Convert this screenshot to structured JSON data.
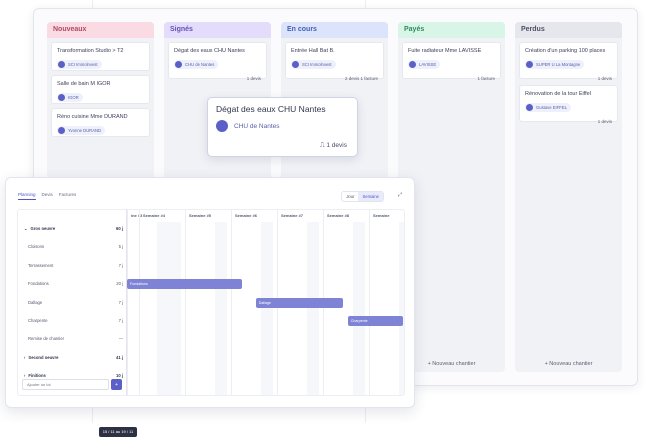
{
  "kanban": {
    "columns": [
      {
        "title": "Nouveaux",
        "color": "#fadbe3",
        "text_color": "#b14a64",
        "cards": [
          {
            "title": "Transformation Studio > T2",
            "chip": "SCI Immolnvest",
            "meta": ""
          },
          {
            "title": "Salle de bain M IGOR",
            "chip": "IGOR",
            "meta": ""
          },
          {
            "title": "Réno cuisine Mme DURAND",
            "chip": "Yvonne DURAND",
            "meta": ""
          }
        ],
        "new_label": ""
      },
      {
        "title": "Signés",
        "color": "#e3dcfa",
        "text_color": "#6650b8",
        "cards": [
          {
            "title": "Dégat des eaux CHU Nantes",
            "chip": "CHU de Nantes",
            "meta": "1 devis"
          }
        ],
        "new_label": ""
      },
      {
        "title": "En cours",
        "color": "#dce4fb",
        "text_color": "#4360b8",
        "cards": [
          {
            "title": "Entrée Hall Bat B.",
            "chip": "SCI Immolnvest",
            "meta": "2 devis   1 facture"
          }
        ],
        "new_label": ""
      },
      {
        "title": "Payés",
        "color": "#d9f5e8",
        "text_color": "#2f8a5e",
        "cards": [
          {
            "title": "Fuite radiateur Mme LAVISSE",
            "chip": "LAVISSE",
            "meta": "1 facture"
          }
        ],
        "new_label": "+ Nouveau chantier"
      },
      {
        "title": "Perdus",
        "color": "#e6e7ec",
        "text_color": "#4d5065",
        "cards": [
          {
            "title": "Création d'un parking 100 places",
            "chip": "SUPER U La Montagne",
            "meta": "1 devis"
          },
          {
            "title": "Rénovation de la tour Eiffel",
            "chip": "Gustave EIFFEL",
            "meta": "1 devis"
          }
        ],
        "new_label": "+ Nouveau chantier"
      }
    ]
  },
  "popup": {
    "title": "Dégat des eaux CHU Nantes",
    "chip": "CHU de Nantes",
    "meta": "1 devis"
  },
  "gantt": {
    "tabs": [
      "Planning",
      "Devis",
      "Factures"
    ],
    "active_tab": "Planning",
    "toggle": [
      "Jour",
      "Semaine"
    ],
    "toggle_active": "Semaine",
    "expand_icon": "expand-icon",
    "rows": [
      {
        "label": "Gros oeuvre",
        "value": "60 j",
        "group": true,
        "prefix": "⌄"
      },
      {
        "label": "Cloisons",
        "value": "5 j",
        "group": false,
        "prefix": ""
      },
      {
        "label": "Terrassement",
        "value": "7 j",
        "group": false,
        "prefix": ""
      },
      {
        "label": "Fondations",
        "value": "20 j",
        "group": false,
        "prefix": ""
      },
      {
        "label": "Dallage",
        "value": "7 j",
        "group": false,
        "prefix": ""
      },
      {
        "label": "Charpente",
        "value": "7 j",
        "group": false,
        "prefix": ""
      },
      {
        "label": "Remise de chantier",
        "value": "—",
        "group": false,
        "prefix": ""
      },
      {
        "label": "Second oeuvre",
        "value": "41 j",
        "group": true,
        "prefix": "›"
      },
      {
        "label": "Finitions",
        "value": "10 j",
        "group": true,
        "prefix": "›"
      }
    ],
    "weeks": [
      "ine #3",
      "Semaine #4",
      "Semaine #5",
      "Semaine #6",
      "Semaine #7",
      "Semaine #8",
      "Semaine"
    ],
    "bars": [
      {
        "label": "Fondations",
        "row": 3,
        "start_week": 0,
        "duration_weeks": 2.5
      },
      {
        "label": "Dallage",
        "row": 4,
        "start_week": 2.8,
        "duration_weeks": 1.9
      },
      {
        "label": "Charpente",
        "row": 5,
        "start_week": 4.8,
        "duration_weeks": 1.2
      }
    ],
    "tooltip": "15 / 11 au 19 / 11",
    "add_placeholder": "Ajouter un lot",
    "add_button": "+"
  }
}
